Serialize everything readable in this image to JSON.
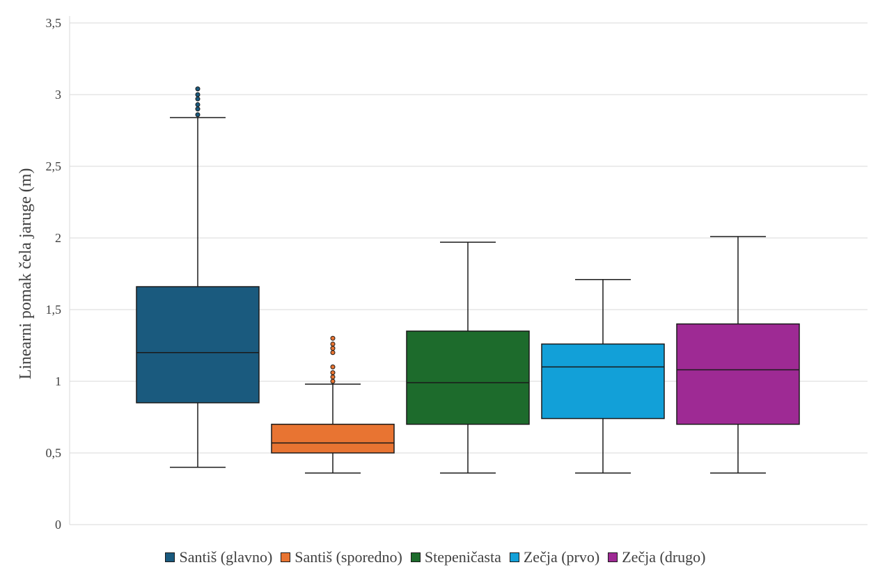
{
  "chart_data": {
    "type": "box",
    "title": "",
    "xlabel": "",
    "ylabel": "Linearni pomak čela jaruge (m)",
    "ylim": [
      0,
      3.5
    ],
    "yticks": [
      {
        "value": 0,
        "label": "0"
      },
      {
        "value": 0.5,
        "label": "0,5"
      },
      {
        "value": 1,
        "label": "1"
      },
      {
        "value": 1.5,
        "label": "1,5"
      },
      {
        "value": 2,
        "label": "2"
      },
      {
        "value": 2.5,
        "label": "2,5"
      },
      {
        "value": 3,
        "label": "3"
      },
      {
        "value": 3.5,
        "label": "3,5"
      }
    ],
    "grid": true,
    "legend_position": "bottom",
    "series": [
      {
        "name": "Santiš (glavno)",
        "color": "#1a5a7e",
        "min": 0.4,
        "q1": 0.85,
        "median": 1.2,
        "q3": 1.66,
        "max": 2.84,
        "outliers": [
          2.86,
          2.9,
          2.93,
          2.97,
          3.0,
          3.04
        ]
      },
      {
        "name": "Santiš (sporedno)",
        "color": "#e87432",
        "min": 0.36,
        "q1": 0.5,
        "median": 0.57,
        "q3": 0.7,
        "max": 0.98,
        "outliers": [
          1.0,
          1.03,
          1.06,
          1.1,
          1.2,
          1.23,
          1.26,
          1.3
        ]
      },
      {
        "name": "Stepeničasta",
        "color": "#1d6b2c",
        "min": 0.36,
        "q1": 0.7,
        "median": 0.99,
        "q3": 1.35,
        "max": 1.97,
        "outliers": []
      },
      {
        "name": "Zečja (prvo)",
        "color": "#12a0d8",
        "min": 0.36,
        "q1": 0.74,
        "median": 1.1,
        "q3": 1.26,
        "max": 1.71,
        "outliers": []
      },
      {
        "name": "Zečja (drugo)",
        "color": "#9e2a94",
        "min": 0.36,
        "q1": 0.7,
        "median": 1.08,
        "q3": 1.4,
        "max": 2.01,
        "outliers": []
      }
    ]
  }
}
